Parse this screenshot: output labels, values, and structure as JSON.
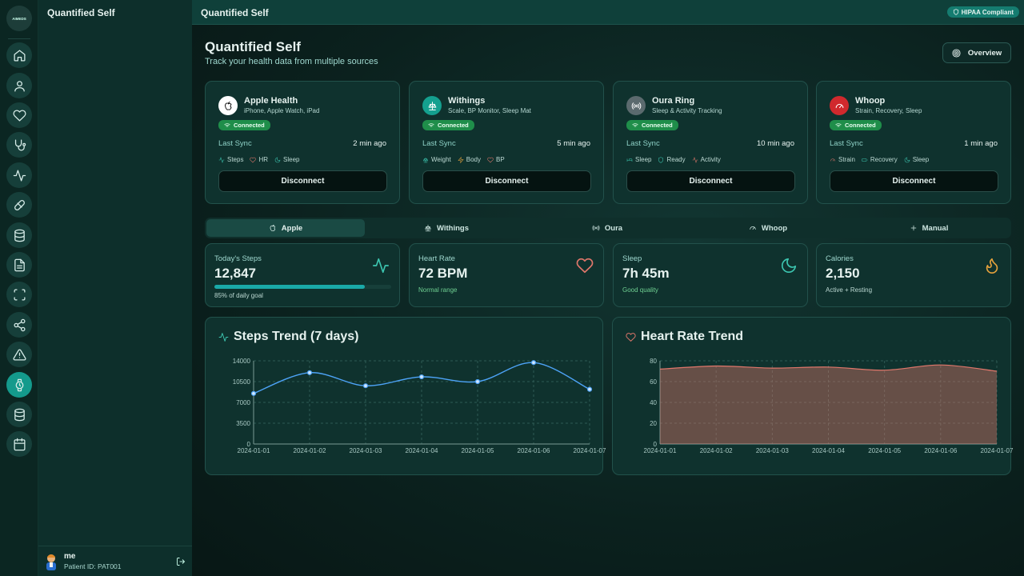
{
  "app": {
    "logo": "AIMEDS",
    "sidebar_title": "Quantified Self",
    "topbar_title": "Quantified Self",
    "badge": "HIPAA Compliant"
  },
  "rail": [
    "home-icon",
    "user-icon",
    "heart-icon",
    "stethoscope-icon",
    "activity-icon",
    "pill-icon",
    "database-icon",
    "document-icon",
    "scan-icon",
    "share-icon",
    "alert-icon",
    "watch-icon",
    "database-icon",
    "calendar-icon"
  ],
  "user": {
    "name": "me",
    "patient_id": "Patient ID: PAT001"
  },
  "page": {
    "title": "Quantified Self",
    "subtitle": "Track your health data from multiple sources",
    "overview_label": "Overview"
  },
  "devices": [
    {
      "name": "Apple Health",
      "desc": "iPhone, Apple Watch, iPad",
      "status": "Connected",
      "sync_label": "Last Sync",
      "sync_value": "2 min ago",
      "metrics": [
        "Steps",
        "HR",
        "Sleep"
      ],
      "button": "Disconnect",
      "color": "#ffffff"
    },
    {
      "name": "Withings",
      "desc": "Scale, BP Monitor, Sleep Mat",
      "status": "Connected",
      "sync_label": "Last Sync",
      "sync_value": "5 min ago",
      "metrics": [
        "Weight",
        "Body",
        "BP"
      ],
      "button": "Disconnect",
      "color": "#14a08f"
    },
    {
      "name": "Oura Ring",
      "desc": "Sleep & Activity Tracking",
      "status": "Connected",
      "sync_label": "Last Sync",
      "sync_value": "10 min ago",
      "metrics": [
        "Sleep",
        "Ready",
        "Activity"
      ],
      "button": "Disconnect",
      "color": "#5b6a6e"
    },
    {
      "name": "Whoop",
      "desc": "Strain, Recovery, Sleep",
      "status": "Connected",
      "sync_label": "Last Sync",
      "sync_value": "1 min ago",
      "metrics": [
        "Strain",
        "Recovery",
        "Sleep"
      ],
      "button": "Disconnect",
      "color": "#d0292d"
    }
  ],
  "tabs": [
    "Apple",
    "Withings",
    "Oura",
    "Whoop",
    "Manual"
  ],
  "stats": [
    {
      "label": "Today's Steps",
      "value": "12,847",
      "sub": "85% of daily goal",
      "progress": 0.85
    },
    {
      "label": "Heart Rate",
      "value": "72 BPM",
      "sub": "Normal range"
    },
    {
      "label": "Sleep",
      "value": "7h 45m",
      "sub": "Good quality"
    },
    {
      "label": "Calories",
      "value": "2,150",
      "sub": "Active + Resting"
    }
  ],
  "chart_data": [
    {
      "type": "line",
      "title": "Steps Trend (7 days)",
      "x": [
        "2024-01-01",
        "2024-01-02",
        "2024-01-03",
        "2024-01-04",
        "2024-01-05",
        "2024-01-06",
        "2024-01-07"
      ],
      "values": [
        8500,
        12000,
        9800,
        11300,
        10500,
        13700,
        9200
      ],
      "ylim": [
        0,
        14000
      ],
      "yticks": [
        0,
        3500,
        7000,
        10500,
        14000
      ],
      "color": "#4da3f7"
    },
    {
      "type": "area",
      "title": "Heart Rate Trend",
      "x": [
        "2024-01-01",
        "2024-01-02",
        "2024-01-03",
        "2024-01-04",
        "2024-01-05",
        "2024-01-06",
        "2024-01-07"
      ],
      "values": [
        72,
        75,
        73,
        74,
        71,
        76,
        70
      ],
      "ylim": [
        0,
        80
      ],
      "yticks": [
        0,
        20,
        40,
        60,
        80
      ],
      "color": "#e0776b"
    }
  ]
}
